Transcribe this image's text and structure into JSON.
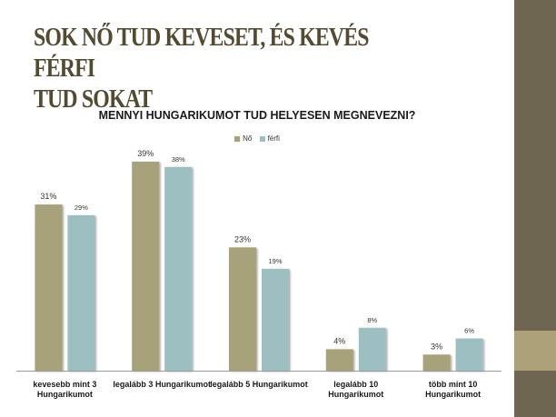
{
  "slide": {
    "title_lines": [
      "SOK NŐ TUD KEVESET, ÉS KEVÉS FÉRFI",
      "TUD SOKAT"
    ]
  },
  "colors": {
    "title": "#534a31",
    "side_bar": "#6e6650",
    "side_accent": "#ada17a"
  },
  "chart_data": {
    "type": "bar",
    "title": "MENNYI HUNGARIKUMOT TUD HELYESEN MEGNEVEZNI?",
    "legend_position": "top",
    "grid": false,
    "unit": "%",
    "ylim": [
      0,
      40
    ],
    "categories": [
      [
        "kevesebb mint 3",
        "Hungarikumot"
      ],
      [
        "legalább 3 Hungarikumot"
      ],
      [
        "legalább 5 Hungarikumot"
      ],
      [
        "legalább 10",
        "Hungarikumot"
      ],
      [
        "több mint 10",
        "Hungarikumot"
      ]
    ],
    "series": [
      {
        "name": "Nő",
        "color": "#a8a27a",
        "values": [
          31,
          39,
          23,
          4,
          3
        ]
      },
      {
        "name": "férfi",
        "color": "#9dbfc1",
        "values": [
          29,
          38,
          19,
          8,
          6
        ]
      }
    ]
  }
}
